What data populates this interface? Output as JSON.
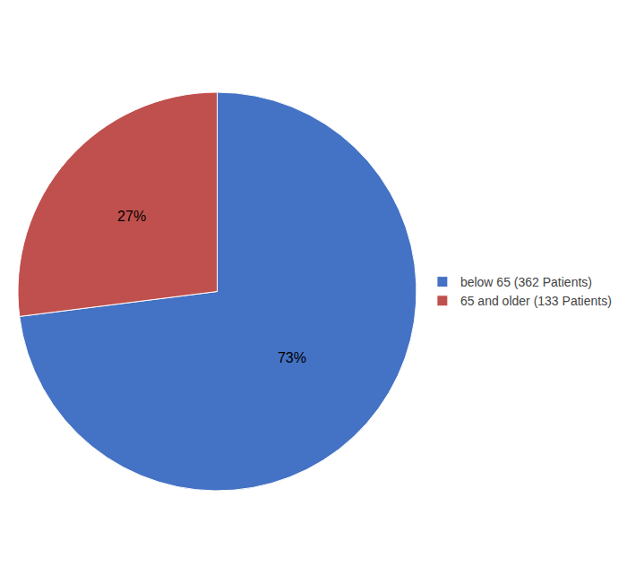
{
  "chart_data": {
    "type": "pie",
    "categories": [
      "below 65 (362 Patients)",
      "65 and older (133 Patients)"
    ],
    "values": [
      73,
      27
    ],
    "value_labels": [
      "73%",
      "27%"
    ],
    "colors": [
      "#4472C4",
      "#C0504D"
    ],
    "data_labels": true,
    "legend": "right"
  }
}
